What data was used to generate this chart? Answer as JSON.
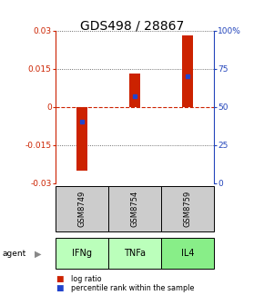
{
  "title": "GDS498 / 28867",
  "samples": [
    "GSM8749",
    "GSM8754",
    "GSM8759"
  ],
  "agents": [
    "IFNg",
    "TNFa",
    "IL4"
  ],
  "log_ratios": [
    -0.025,
    0.013,
    0.028
  ],
  "percentiles": [
    0.4,
    0.57,
    0.7
  ],
  "ylim": [
    -0.03,
    0.03
  ],
  "yticks_left": [
    -0.03,
    -0.015,
    0,
    0.015,
    0.03
  ],
  "yticks_right": [
    0,
    25,
    50,
    75,
    100
  ],
  "bar_color": "#cc2200",
  "blue_color": "#2244cc",
  "agent_colors": [
    "#bbffbb",
    "#bbffbb",
    "#88ee88"
  ],
  "sample_bg": "#cccccc",
  "left_axis_color": "#cc2200",
  "right_axis_color": "#2244bb",
  "title_fontsize": 10,
  "bar_width": 0.22
}
